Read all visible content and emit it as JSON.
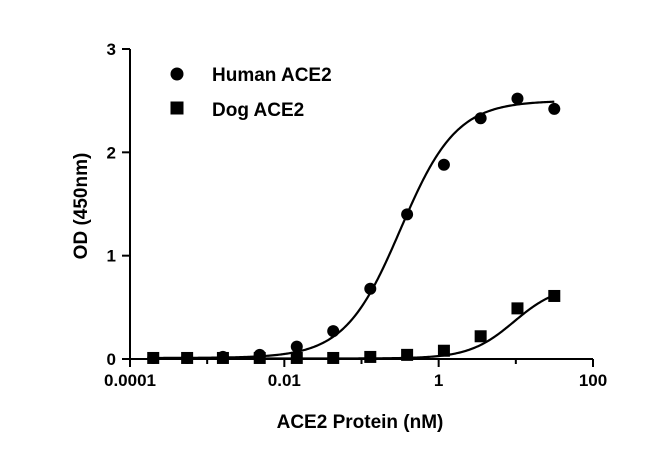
{
  "chart_data": {
    "type": "scatter",
    "title": "",
    "xlabel": "ACE2 Protein (nM)",
    "ylabel": "OD (450nm)",
    "xscale": "log",
    "xlim": [
      0.0001,
      100
    ],
    "ylim": [
      0,
      3
    ],
    "xticks": [
      0.0001,
      0.01,
      1,
      100
    ],
    "xtick_labels": [
      "0.0001",
      "0.01",
      "1",
      "100"
    ],
    "yticks": [
      0,
      1,
      2,
      3
    ],
    "ytick_labels": [
      "0",
      "1",
      "2",
      "3"
    ],
    "grid": false,
    "legend": "top-left",
    "fit_curves": "sigmoidal",
    "series": [
      {
        "name": "Human ACE2",
        "marker": "circle",
        "color": "#000000",
        "x": [
          0.0002,
          0.00055,
          0.0016,
          0.0048,
          0.0145,
          0.043,
          0.13,
          0.39,
          1.17,
          3.5,
          10.5,
          31.5
        ],
        "y": [
          0.01,
          0.01,
          0.02,
          0.04,
          0.12,
          0.27,
          0.68,
          1.4,
          1.88,
          2.33,
          2.52,
          2.42
        ],
        "fit": {
          "bottom": 0.01,
          "top": 2.5,
          "ec50": 0.32,
          "hill": 1.2
        }
      },
      {
        "name": "Dog ACE2",
        "marker": "square",
        "color": "#000000",
        "x": [
          0.0002,
          0.00055,
          0.0016,
          0.0048,
          0.0145,
          0.043,
          0.13,
          0.39,
          1.17,
          3.5,
          10.5,
          31.5
        ],
        "y": [
          0.01,
          0.01,
          0.01,
          0.01,
          0.01,
          0.01,
          0.02,
          0.04,
          0.08,
          0.22,
          0.49,
          0.61
        ],
        "fit": {
          "bottom": 0.005,
          "top": 0.72,
          "ec50": 9.5,
          "hill": 1.5
        }
      }
    ]
  }
}
